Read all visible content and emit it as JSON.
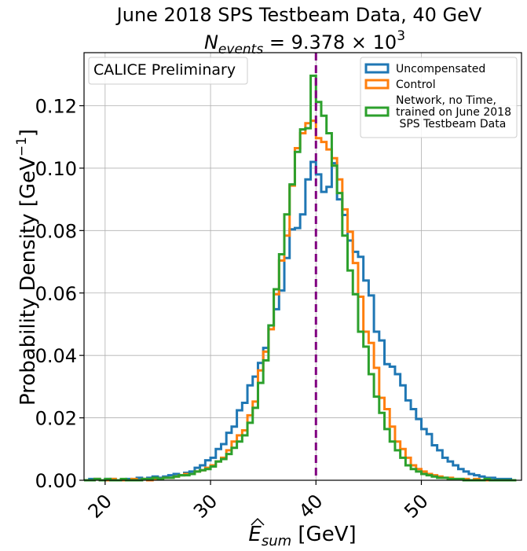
{
  "chart_data": {
    "type": "histogram-step",
    "title": "June 2018 SPS Testbeam Data, 40 GeV",
    "subtitle_prefix": "N",
    "subtitle_sub": "events",
    "subtitle_value": " = 9.378 × 10",
    "subtitle_exp": "3",
    "xlabel_main": "E",
    "xlabel_sub": "sum",
    "xlabel_unit": " [GeV]",
    "ylabel": "Probability Density [GeV",
    "ylabel_exp": "−1",
    "ylabel_close": "]",
    "xlim": [
      18,
      59.5
    ],
    "ylim": [
      0,
      0.137
    ],
    "xticks": [
      20,
      30,
      40,
      50
    ],
    "xtick_labels": [
      "20",
      "30",
      "40",
      "50"
    ],
    "yticks": [
      0.0,
      0.02,
      0.04,
      0.06,
      0.08,
      0.1,
      0.12
    ],
    "ytick_labels": [
      "0.00",
      "0.02",
      "0.04",
      "0.06",
      "0.08",
      "0.10",
      "0.12"
    ],
    "grid": true,
    "annotation": "CALICE Preliminary",
    "annotation_position": "top-left",
    "legend_position": "top-right",
    "reference_line": {
      "x": 40,
      "color": "#800080",
      "style": "dashed"
    },
    "bin_start": 18,
    "bin_width": 0.5,
    "series": [
      {
        "name": "Uncompensated",
        "color": "#1f77b4",
        "values": [
          0.0,
          0.0004,
          0.0004,
          0.0,
          0.0004,
          0.0004,
          0.0,
          0.0,
          0.0004,
          0.0,
          0.0008,
          0.0004,
          0.0008,
          0.0012,
          0.0008,
          0.0012,
          0.0016,
          0.002,
          0.0016,
          0.0024,
          0.0028,
          0.004,
          0.0048,
          0.0064,
          0.0072,
          0.01,
          0.0116,
          0.0152,
          0.0172,
          0.0224,
          0.0248,
          0.0304,
          0.0332,
          0.0376,
          0.0424,
          0.0496,
          0.0548,
          0.0608,
          0.0712,
          0.0804,
          0.0808,
          0.0852,
          0.0964,
          0.102,
          0.098,
          0.0924,
          0.094,
          0.1016,
          0.09,
          0.085,
          0.0768,
          0.0732,
          0.0716,
          0.064,
          0.0592,
          0.0476,
          0.0448,
          0.0372,
          0.0364,
          0.034,
          0.0304,
          0.0256,
          0.0228,
          0.0196,
          0.0164,
          0.0148,
          0.0112,
          0.0096,
          0.0072,
          0.006,
          0.0048,
          0.0036,
          0.0028,
          0.002,
          0.0016,
          0.0012,
          0.0008,
          0.0008,
          0.0004,
          0.0004,
          0.0004,
          0.0
        ]
      },
      {
        "name": "Control",
        "color": "#ff7f0e",
        "values": [
          0.0,
          0.0,
          0.0004,
          0.0,
          0.0,
          0.0004,
          0.0,
          0.0,
          0.0,
          0.0004,
          0.0,
          0.0004,
          0.0,
          0.0004,
          0.0004,
          0.0008,
          0.0008,
          0.0012,
          0.0016,
          0.002,
          0.002,
          0.0028,
          0.0032,
          0.004,
          0.0048,
          0.006,
          0.0072,
          0.0096,
          0.0124,
          0.0144,
          0.016,
          0.0208,
          0.0252,
          0.0352,
          0.0412,
          0.0484,
          0.0596,
          0.0704,
          0.0784,
          0.0944,
          0.1064,
          0.1112,
          0.1144,
          0.1152,
          0.1096,
          0.1084,
          0.106,
          0.1032,
          0.0964,
          0.0868,
          0.0796,
          0.0696,
          0.0588,
          0.0476,
          0.044,
          0.036,
          0.0264,
          0.0228,
          0.0172,
          0.0124,
          0.01,
          0.0072,
          0.0048,
          0.0036,
          0.0028,
          0.002,
          0.0016,
          0.0012,
          0.0008,
          0.0008,
          0.0004,
          0.0004,
          0.0004,
          0.0,
          0.0004,
          0.0,
          0.0,
          0.0,
          0.0,
          0.0,
          0.0,
          0.0
        ]
      },
      {
        "name": "Network, no Time,\ntrained on June 2018\n SPS Testbeam Data",
        "color": "#2ca02c",
        "values": [
          0.0,
          0.0,
          0.0004,
          0.0,
          0.0004,
          0.0,
          0.0,
          0.0004,
          0.0,
          0.0,
          0.0,
          0.0004,
          0.0004,
          0.0008,
          0.0004,
          0.0008,
          0.0008,
          0.0012,
          0.0016,
          0.0016,
          0.002,
          0.0028,
          0.0032,
          0.0036,
          0.0044,
          0.006,
          0.0068,
          0.0084,
          0.0104,
          0.0124,
          0.0144,
          0.0184,
          0.0232,
          0.0312,
          0.0384,
          0.0496,
          0.0612,
          0.0724,
          0.0852,
          0.0948,
          0.1052,
          0.1124,
          0.1128,
          0.1296,
          0.1212,
          0.1168,
          0.1112,
          0.1008,
          0.092,
          0.0784,
          0.0672,
          0.0596,
          0.0476,
          0.0428,
          0.034,
          0.0268,
          0.0216,
          0.0164,
          0.0124,
          0.0096,
          0.0072,
          0.0048,
          0.0036,
          0.0028,
          0.002,
          0.0016,
          0.0012,
          0.0008,
          0.0008,
          0.0004,
          0.0004,
          0.0004,
          0.0,
          0.0,
          0.0,
          0.0,
          0.0004,
          0.0,
          0.0,
          0.0,
          0.0,
          0.0
        ]
      }
    ]
  }
}
